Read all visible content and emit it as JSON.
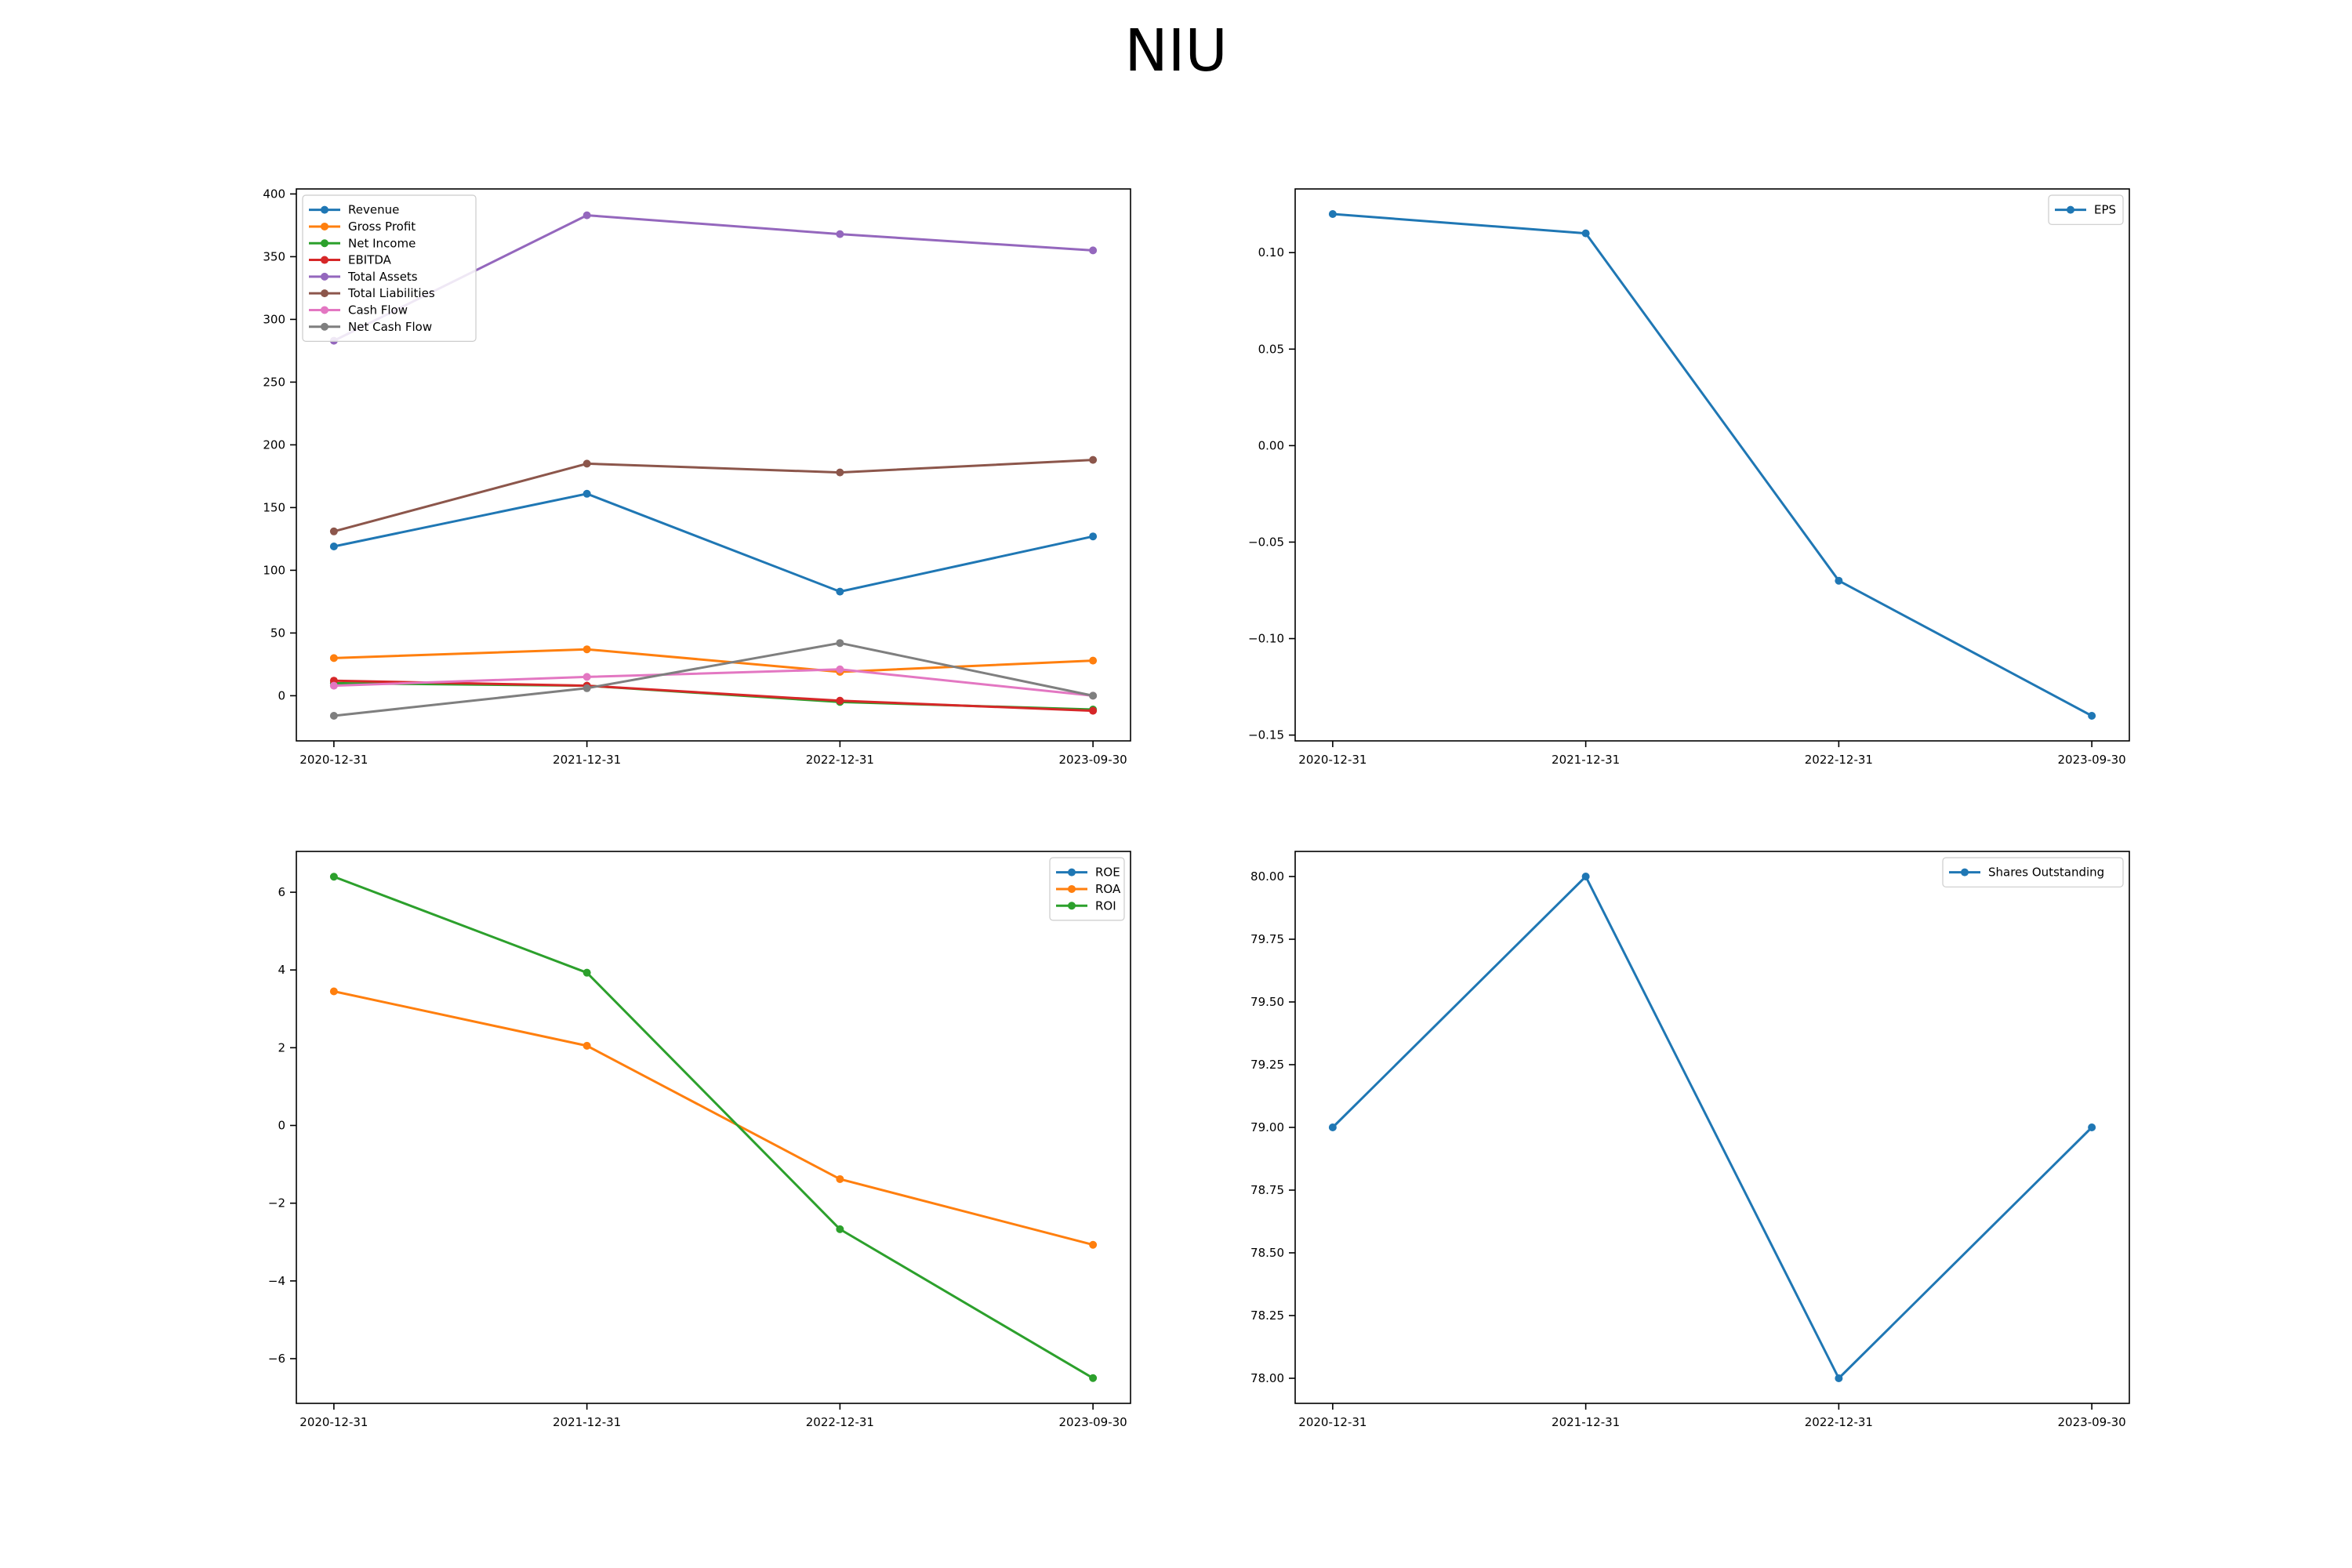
{
  "title": "NIU",
  "chart_data": [
    {
      "type": "line",
      "x": [
        "2020-12-31",
        "2021-12-31",
        "2022-12-31",
        "2023-09-30"
      ],
      "ylim": [
        -36,
        404
      ],
      "yticks": [
        0,
        50,
        100,
        150,
        200,
        250,
        300,
        350,
        400
      ],
      "ytick_labels": [
        "0",
        "50",
        "100",
        "150",
        "200",
        "250",
        "300",
        "350",
        "400"
      ],
      "legend": "upper-left",
      "grid": false,
      "series": [
        {
          "name": "Revenue",
          "color": "#1f77b4",
          "values": [
            119,
            161,
            83,
            127
          ]
        },
        {
          "name": "Gross Profit",
          "color": "#ff7f0e",
          "values": [
            30,
            37,
            19,
            28
          ]
        },
        {
          "name": "Net Income",
          "color": "#2ca02c",
          "values": [
            10,
            8,
            -5,
            -11
          ]
        },
        {
          "name": "EBITDA",
          "color": "#d62728",
          "values": [
            12,
            8,
            -4,
            -12
          ]
        },
        {
          "name": "Total Assets",
          "color": "#9467bd",
          "values": [
            283,
            383,
            368,
            355
          ]
        },
        {
          "name": "Total Liabilities",
          "color": "#8c564b",
          "values": [
            131,
            185,
            178,
            188
          ]
        },
        {
          "name": "Cash Flow",
          "color": "#e377c2",
          "values": [
            8,
            15,
            21,
            0
          ]
        },
        {
          "name": "Net Cash Flow",
          "color": "#7f7f7f",
          "values": [
            -16,
            6,
            42,
            0
          ]
        }
      ]
    },
    {
      "type": "line",
      "x": [
        "2020-12-31",
        "2021-12-31",
        "2022-12-31",
        "2023-09-30"
      ],
      "ylim": [
        -0.153,
        0.133
      ],
      "yticks": [
        -0.15,
        -0.1,
        -0.05,
        0.0,
        0.05,
        0.1
      ],
      "ytick_labels": [
        "−0.15",
        "−0.10",
        "−0.05",
        "0.00",
        "0.05",
        "0.10"
      ],
      "legend": "upper-right",
      "grid": false,
      "series": [
        {
          "name": "EPS",
          "color": "#1f77b4",
          "values": [
            0.12,
            0.11,
            -0.07,
            -0.14
          ]
        }
      ]
    },
    {
      "type": "line",
      "x": [
        "2020-12-31",
        "2021-12-31",
        "2022-12-31",
        "2023-09-30"
      ],
      "ylim": [
        -7.15,
        7.05
      ],
      "yticks": [
        -6,
        -4,
        -2,
        0,
        2,
        4,
        6
      ],
      "ytick_labels": [
        "−6",
        "−4",
        "−2",
        "0",
        "2",
        "4",
        "6"
      ],
      "legend": "upper-right",
      "grid": false,
      "series": [
        {
          "name": "ROE",
          "color": "#1f77b4",
          "values": [
            null,
            null,
            null,
            null
          ]
        },
        {
          "name": "ROA",
          "color": "#ff7f0e",
          "values": [
            3.45,
            2.05,
            -1.38,
            -3.07
          ]
        },
        {
          "name": "ROI",
          "color": "#2ca02c",
          "values": [
            6.4,
            3.93,
            -2.67,
            -6.5
          ]
        }
      ]
    },
    {
      "type": "line",
      "x": [
        "2020-12-31",
        "2021-12-31",
        "2022-12-31",
        "2023-09-30"
      ],
      "ylim": [
        77.9,
        80.1
      ],
      "yticks": [
        78.0,
        78.25,
        78.5,
        78.75,
        79.0,
        79.25,
        79.5,
        79.75,
        80.0
      ],
      "ytick_labels": [
        "78.00",
        "78.25",
        "78.50",
        "78.75",
        "79.00",
        "79.25",
        "79.50",
        "79.75",
        "80.00"
      ],
      "legend": "upper-right",
      "grid": false,
      "series": [
        {
          "name": "Shares Outstanding",
          "color": "#1f77b4",
          "values": [
            79,
            80,
            78,
            79
          ]
        }
      ]
    }
  ]
}
